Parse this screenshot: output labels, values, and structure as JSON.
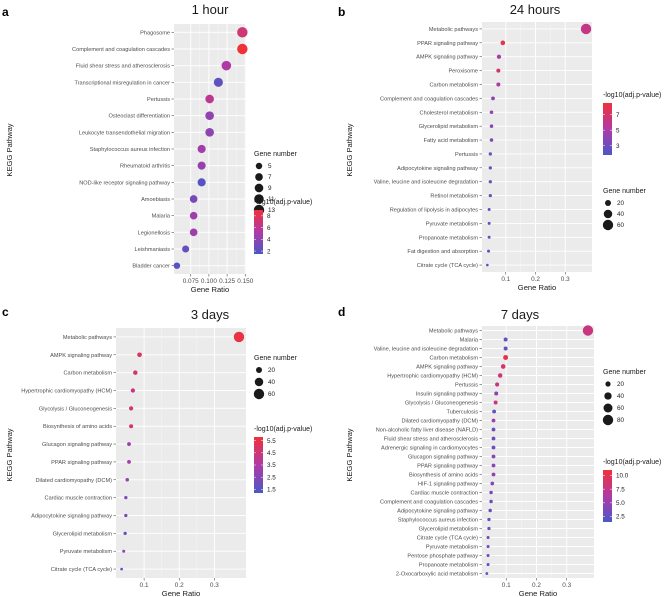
{
  "chart_data": [
    {
      "panel_label": "a",
      "title": "1 hour",
      "type": "scatter",
      "xlabel": "Gene Ratio",
      "ylabel": "KEGG Pathway",
      "xlim": [
        0.052,
        0.151
      ],
      "xticks": [
        0.075,
        0.1,
        0.125,
        0.15
      ],
      "xtick_labels": [
        "0.075",
        "0.100",
        "0.125",
        "0.150"
      ],
      "size_legend": {
        "title": "Gene number",
        "values": [
          5,
          7,
          9,
          11,
          13
        ],
        "labels": [
          "5",
          "7",
          "9",
          "11",
          "13"
        ]
      },
      "color_legend": {
        "title": "-log10(adj.p-value)",
        "range": [
          1.5,
          9
        ],
        "ticks": [
          2,
          4,
          6,
          8
        ],
        "labels": [
          "2",
          "4",
          "6",
          "8"
        ]
      },
      "points": [
        {
          "pathway": "Phagosome",
          "gene_ratio": 0.146,
          "gene_number": 13,
          "neglog10p": 7.0
        },
        {
          "pathway": "Complement and coagulation cascades",
          "gene_ratio": 0.146,
          "gene_number": 13,
          "neglog10p": 9.0
        },
        {
          "pathway": "Fluid shear stress and atherosclerosis",
          "gene_ratio": 0.124,
          "gene_number": 11,
          "neglog10p": 5.2
        },
        {
          "pathway": "Transcriptional misregulation in cancer",
          "gene_ratio": 0.113,
          "gene_number": 10,
          "neglog10p": 2.2
        },
        {
          "pathway": "Pertussis",
          "gene_ratio": 0.101,
          "gene_number": 9,
          "neglog10p": 6.0
        },
        {
          "pathway": "Osteoclast differentiation",
          "gene_ratio": 0.101,
          "gene_number": 9,
          "neglog10p": 4.0
        },
        {
          "pathway": "Leukocyte transendothelial migration",
          "gene_ratio": 0.101,
          "gene_number": 9,
          "neglog10p": 4.0
        },
        {
          "pathway": "Staphylococcus aureus infection",
          "gene_ratio": 0.09,
          "gene_number": 8,
          "neglog10p": 4.8
        },
        {
          "pathway": "Rheumatoid arthritis",
          "gene_ratio": 0.09,
          "gene_number": 8,
          "neglog10p": 4.3
        },
        {
          "pathway": "NOD-like receptor signaling pathway",
          "gene_ratio": 0.09,
          "gene_number": 8,
          "neglog10p": 2.0
        },
        {
          "pathway": "Amoebiasis",
          "gene_ratio": 0.079,
          "gene_number": 7,
          "neglog10p": 3.2
        },
        {
          "pathway": "Malaria",
          "gene_ratio": 0.079,
          "gene_number": 7,
          "neglog10p": 4.6
        },
        {
          "pathway": "Legionellosis",
          "gene_ratio": 0.079,
          "gene_number": 7,
          "neglog10p": 4.6
        },
        {
          "pathway": "Leishmaniasis",
          "gene_ratio": 0.068,
          "gene_number": 6,
          "neglog10p": 2.5
        },
        {
          "pathway": "Bladder cancer",
          "gene_ratio": 0.056,
          "gene_number": 5,
          "neglog10p": 2.0
        }
      ]
    },
    {
      "panel_label": "b",
      "title": "24 hours",
      "type": "scatter",
      "xlabel": "Gene Ratio",
      "ylabel": "KEGG Pathway",
      "xlim": [
        0.02,
        0.39
      ],
      "xticks": [
        0.1,
        0.2,
        0.3
      ],
      "xtick_labels": [
        "0.1",
        "0.2",
        "0.3"
      ],
      "size_legend": {
        "title": "Gene number",
        "values": [
          20,
          40,
          60
        ],
        "labels": [
          "20",
          "40",
          "60"
        ]
      },
      "color_legend": {
        "title": "-log10(adj.p-value)",
        "range": [
          1.8,
          8.5
        ],
        "ticks": [
          3,
          5,
          7
        ],
        "labels": [
          "3",
          "5",
          "7"
        ]
      },
      "points": [
        {
          "pathway": "Metabolic pathways",
          "gene_ratio": 0.37,
          "gene_number": 60,
          "neglog10p": 6.2
        },
        {
          "pathway": "PPAR signaling pathway",
          "gene_ratio": 0.09,
          "gene_number": 12,
          "neglog10p": 8.0
        },
        {
          "pathway": "AMPK signaling pathway",
          "gene_ratio": 0.077,
          "gene_number": 10,
          "neglog10p": 5.0
        },
        {
          "pathway": "Peroxisome",
          "gene_ratio": 0.075,
          "gene_number": 9,
          "neglog10p": 7.0
        },
        {
          "pathway": "Carbon metabolism",
          "gene_ratio": 0.075,
          "gene_number": 9,
          "neglog10p": 5.0
        },
        {
          "pathway": "Complement and coagulation cascades",
          "gene_ratio": 0.057,
          "gene_number": 8,
          "neglog10p": 4.0
        },
        {
          "pathway": "Cholesterol metabolism",
          "gene_ratio": 0.052,
          "gene_number": 7,
          "neglog10p": 4.2
        },
        {
          "pathway": "Glycerolipid metabolism",
          "gene_ratio": 0.052,
          "gene_number": 7,
          "neglog10p": 4.0
        },
        {
          "pathway": "Fatty acid metabolism",
          "gene_ratio": 0.052,
          "gene_number": 7,
          "neglog10p": 3.5
        },
        {
          "pathway": "Pertussis",
          "gene_ratio": 0.048,
          "gene_number": 6,
          "neglog10p": 3.0
        },
        {
          "pathway": "Adipocytokine signaling pathway",
          "gene_ratio": 0.048,
          "gene_number": 6,
          "neglog10p": 3.0
        },
        {
          "pathway": "Valine, leucine and isoleucine degradation",
          "gene_ratio": 0.048,
          "gene_number": 6,
          "neglog10p": 3.0
        },
        {
          "pathway": "Retinol metabolism",
          "gene_ratio": 0.048,
          "gene_number": 6,
          "neglog10p": 3.0
        },
        {
          "pathway": "Regulation of lipolysis in adipocytes",
          "gene_ratio": 0.044,
          "gene_number": 5,
          "neglog10p": 2.6
        },
        {
          "pathway": "Pyruvate metabolism",
          "gene_ratio": 0.044,
          "gene_number": 5,
          "neglog10p": 2.6
        },
        {
          "pathway": "Propanoate metabolism",
          "gene_ratio": 0.044,
          "gene_number": 5,
          "neglog10p": 2.6
        },
        {
          "pathway": "Fat digestion and absorption",
          "gene_ratio": 0.042,
          "gene_number": 5,
          "neglog10p": 2.3
        },
        {
          "pathway": "Citrate cycle (TCA cycle)",
          "gene_ratio": 0.038,
          "gene_number": 4,
          "neglog10p": 2.0
        }
      ]
    },
    {
      "panel_label": "c",
      "title": "3 days",
      "type": "scatter",
      "xlabel": "Gene Ratio",
      "ylabel": "KEGG Pathway",
      "xlim": [
        0.02,
        0.39
      ],
      "xticks": [
        0.1,
        0.2,
        0.3
      ],
      "xtick_labels": [
        "0.1",
        "0.2",
        "0.3"
      ],
      "size_legend": {
        "title": "Gene number",
        "values": [
          20,
          40,
          60
        ],
        "labels": [
          "20",
          "40",
          "60"
        ]
      },
      "color_legend": {
        "title": "-log10(adj.p-value)",
        "range": [
          1.2,
          5.8
        ],
        "ticks": [
          1.5,
          2.5,
          3.5,
          4.5,
          5.5
        ],
        "labels": [
          "1.5",
          "2.5",
          "3.5",
          "4.5",
          "5.5"
        ]
      },
      "points": [
        {
          "pathway": "Metabolic pathways",
          "gene_ratio": 0.37,
          "gene_number": 60,
          "neglog10p": 5.6
        },
        {
          "pathway": "AMPK signaling pathway",
          "gene_ratio": 0.087,
          "gene_number": 12,
          "neglog10p": 5.0
        },
        {
          "pathway": "Carbon metabolism",
          "gene_ratio": 0.075,
          "gene_number": 11,
          "neglog10p": 4.6
        },
        {
          "pathway": "Hypertrophic cardiomyopathy (HCM)",
          "gene_ratio": 0.068,
          "gene_number": 10,
          "neglog10p": 4.3
        },
        {
          "pathway": "Glycolysis / Gluconeogenesis",
          "gene_ratio": 0.063,
          "gene_number": 10,
          "neglog10p": 4.6
        },
        {
          "pathway": "Biosynthesis of amino acids",
          "gene_ratio": 0.063,
          "gene_number": 9,
          "neglog10p": 4.6
        },
        {
          "pathway": "Glucagon signaling pathway",
          "gene_ratio": 0.057,
          "gene_number": 8,
          "neglog10p": 3.1
        },
        {
          "pathway": "PPAR signaling pathway",
          "gene_ratio": 0.057,
          "gene_number": 8,
          "neglog10p": 3.2
        },
        {
          "pathway": "Dilated cardiomyopathy (DCM)",
          "gene_ratio": 0.052,
          "gene_number": 7,
          "neglog10p": 2.8
        },
        {
          "pathway": "Cardiac muscle contraction",
          "gene_ratio": 0.048,
          "gene_number": 6,
          "neglog10p": 2.2
        },
        {
          "pathway": "Adipocytokine signaling pathway",
          "gene_ratio": 0.048,
          "gene_number": 6,
          "neglog10p": 2.2
        },
        {
          "pathway": "Glycerolipid metabolism",
          "gene_ratio": 0.046,
          "gene_number": 6,
          "neglog10p": 1.8
        },
        {
          "pathway": "Pyruvate metabolism",
          "gene_ratio": 0.042,
          "gene_number": 5,
          "neglog10p": 2.8
        },
        {
          "pathway": "Citrate cycle (TCA cycle)",
          "gene_ratio": 0.036,
          "gene_number": 4,
          "neglog10p": 1.5
        }
      ]
    },
    {
      "panel_label": "d",
      "title": "7 days",
      "type": "scatter",
      "xlabel": "Gene Ratio",
      "ylabel": "KEGG Pathway",
      "xlim": [
        0.02,
        0.39
      ],
      "xticks": [
        0.1,
        0.2,
        0.3
      ],
      "xtick_labels": [
        "0.1",
        "0.2",
        "0.3"
      ],
      "size_legend": {
        "title": "Gene number",
        "values": [
          20,
          40,
          60,
          80
        ],
        "labels": [
          "20",
          "40",
          "60",
          "80"
        ]
      },
      "color_legend": {
        "title": "-log10(adj.p-value)",
        "range": [
          1.5,
          11
        ],
        "ticks": [
          2.5,
          5.0,
          7.5,
          10.0
        ],
        "labels": [
          "2.5",
          "5.0",
          "7.5",
          "10.0"
        ]
      },
      "points": [
        {
          "pathway": "Metabolic pathways",
          "gene_ratio": 0.37,
          "gene_number": 80,
          "neglog10p": 8.0
        },
        {
          "pathway": "Malaria",
          "gene_ratio": 0.098,
          "gene_number": 12,
          "neglog10p": 3.0
        },
        {
          "pathway": "Valine, leucine and isoleucine degradation",
          "gene_ratio": 0.098,
          "gene_number": 12,
          "neglog10p": 2.6
        },
        {
          "pathway": "Carbon metabolism",
          "gene_ratio": 0.098,
          "gene_number": 18,
          "neglog10p": 10.5
        },
        {
          "pathway": "AMPK signaling pathway",
          "gene_ratio": 0.09,
          "gene_number": 16,
          "neglog10p": 9.0
        },
        {
          "pathway": "Hypertrophic cardiomyopathy (HCM)",
          "gene_ratio": 0.08,
          "gene_number": 15,
          "neglog10p": 8.5
        },
        {
          "pathway": "Pertussis",
          "gene_ratio": 0.07,
          "gene_number": 13,
          "neglog10p": 8.0
        },
        {
          "pathway": "Insulin signaling pathway",
          "gene_ratio": 0.067,
          "gene_number": 12,
          "neglog10p": 4.5
        },
        {
          "pathway": "Glycolysis / Gluconeogenesis",
          "gene_ratio": 0.065,
          "gene_number": 12,
          "neglog10p": 8.0
        },
        {
          "pathway": "Tuberculosis",
          "gene_ratio": 0.06,
          "gene_number": 11,
          "neglog10p": 2.8
        },
        {
          "pathway": "Dilated cardiomyopathy (DCM)",
          "gene_ratio": 0.058,
          "gene_number": 11,
          "neglog10p": 5.5
        },
        {
          "pathway": "Non-alcoholic fatty liver disease (NAFLD)",
          "gene_ratio": 0.058,
          "gene_number": 11,
          "neglog10p": 3.0
        },
        {
          "pathway": "Fluid shear stress and atherosclerosis",
          "gene_ratio": 0.058,
          "gene_number": 11,
          "neglog10p": 3.0
        },
        {
          "pathway": "Adrenergic signaling in cardiomyocytes",
          "gene_ratio": 0.058,
          "gene_number": 11,
          "neglog10p": 3.0
        },
        {
          "pathway": "Glucagon signaling pathway",
          "gene_ratio": 0.058,
          "gene_number": 11,
          "neglog10p": 4.5
        },
        {
          "pathway": "PPAR signaling pathway",
          "gene_ratio": 0.058,
          "gene_number": 11,
          "neglog10p": 4.5
        },
        {
          "pathway": "Biosynthesis of amino acids",
          "gene_ratio": 0.058,
          "gene_number": 11,
          "neglog10p": 5.0
        },
        {
          "pathway": "HIF-1 signaling pathway",
          "gene_ratio": 0.054,
          "gene_number": 10,
          "neglog10p": 4.0
        },
        {
          "pathway": "Cardiac muscle contraction",
          "gene_ratio": 0.05,
          "gene_number": 9,
          "neglog10p": 3.6
        },
        {
          "pathway": "Complement and coagulation cascades",
          "gene_ratio": 0.05,
          "gene_number": 9,
          "neglog10p": 3.0
        },
        {
          "pathway": "Adipocytokine signaling pathway",
          "gene_ratio": 0.047,
          "gene_number": 9,
          "neglog10p": 3.0
        },
        {
          "pathway": "Staphylococcus aureus infection",
          "gene_ratio": 0.043,
          "gene_number": 8,
          "neglog10p": 2.8
        },
        {
          "pathway": "Glycerolipid metabolism",
          "gene_ratio": 0.043,
          "gene_number": 8,
          "neglog10p": 3.5
        },
        {
          "pathway": "Citrate cycle (TCA cycle)",
          "gene_ratio": 0.04,
          "gene_number": 7,
          "neglog10p": 3.0
        },
        {
          "pathway": "Pyruvate metabolism",
          "gene_ratio": 0.04,
          "gene_number": 7,
          "neglog10p": 3.0
        },
        {
          "pathway": "Pentose phosphate pathway",
          "gene_ratio": 0.04,
          "gene_number": 7,
          "neglog10p": 3.5
        },
        {
          "pathway": "Propanoate metabolism",
          "gene_ratio": 0.04,
          "gene_number": 7,
          "neglog10p": 3.0
        },
        {
          "pathway": "2-Oxocarboxylic acid metabolism",
          "gene_ratio": 0.036,
          "gene_number": 6,
          "neglog10p": 2.5
        }
      ]
    }
  ]
}
